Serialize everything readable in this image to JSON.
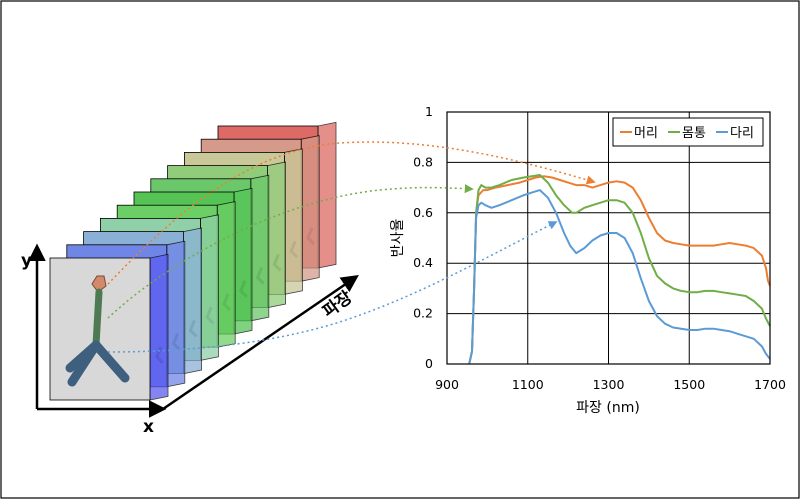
{
  "cube": {
    "x_label": "x",
    "y_label": "y",
    "wavelength_label": "파장",
    "slice_colors": [
      "#5b5cf0",
      "#6f86e6",
      "#8ab0d6",
      "#8fd0a8",
      "#6ccf66",
      "#55c455",
      "#6ac86a",
      "#90cc7a",
      "#c8c898",
      "#d59a8a",
      "#dd6a64"
    ]
  },
  "chart_data": {
    "type": "line",
    "xlabel": "파장 (nm)",
    "ylabel": "반사율",
    "xlim": [
      900,
      1700
    ],
    "ylim": [
      0,
      1
    ],
    "xticks": [
      "900",
      "1100",
      "1300",
      "1500",
      "1700"
    ],
    "yticks": [
      "0",
      "0.2",
      "0.4",
      "0.6",
      "0.8",
      "1"
    ],
    "grid": true,
    "legend_position": "top-right",
    "series": [
      {
        "name": "머리",
        "color": "#ed7d31",
        "x": [
          955,
          962,
          967,
          972,
          978,
          990,
          1000,
          1020,
          1050,
          1080,
          1100,
          1120,
          1140,
          1160,
          1180,
          1200,
          1220,
          1240,
          1260,
          1280,
          1300,
          1320,
          1340,
          1360,
          1380,
          1400,
          1420,
          1440,
          1460,
          1480,
          1500,
          1520,
          1540,
          1560,
          1580,
          1600,
          1620,
          1640,
          1660,
          1680,
          1690,
          1695,
          1700
        ],
        "y": [
          0.0,
          0.05,
          0.3,
          0.6,
          0.67,
          0.69,
          0.69,
          0.7,
          0.71,
          0.72,
          0.73,
          0.74,
          0.745,
          0.74,
          0.73,
          0.72,
          0.71,
          0.71,
          0.7,
          0.71,
          0.72,
          0.725,
          0.72,
          0.7,
          0.65,
          0.58,
          0.52,
          0.49,
          0.48,
          0.475,
          0.47,
          0.47,
          0.47,
          0.47,
          0.475,
          0.48,
          0.475,
          0.47,
          0.46,
          0.43,
          0.38,
          0.33,
          0.31
        ]
      },
      {
        "name": "몸통",
        "color": "#70ad47",
        "x": [
          955,
          962,
          967,
          972,
          978,
          985,
          995,
          1010,
          1030,
          1060,
          1090,
          1110,
          1130,
          1150,
          1170,
          1190,
          1210,
          1220,
          1240,
          1260,
          1280,
          1300,
          1320,
          1340,
          1360,
          1380,
          1400,
          1420,
          1440,
          1460,
          1480,
          1500,
          1520,
          1540,
          1560,
          1580,
          1600,
          1620,
          1640,
          1660,
          1680,
          1690,
          1700
        ],
        "y": [
          0.0,
          0.05,
          0.3,
          0.6,
          0.69,
          0.71,
          0.7,
          0.7,
          0.71,
          0.73,
          0.74,
          0.745,
          0.75,
          0.72,
          0.67,
          0.63,
          0.6,
          0.6,
          0.62,
          0.63,
          0.64,
          0.65,
          0.65,
          0.64,
          0.6,
          0.52,
          0.42,
          0.35,
          0.32,
          0.3,
          0.29,
          0.285,
          0.285,
          0.29,
          0.29,
          0.285,
          0.28,
          0.275,
          0.27,
          0.25,
          0.22,
          0.18,
          0.15
        ]
      },
      {
        "name": "다리",
        "color": "#5b9bd5",
        "x": [
          955,
          962,
          967,
          972,
          978,
          985,
          995,
          1010,
          1030,
          1060,
          1090,
          1110,
          1130,
          1150,
          1170,
          1190,
          1205,
          1220,
          1240,
          1260,
          1280,
          1300,
          1320,
          1340,
          1360,
          1380,
          1400,
          1420,
          1440,
          1460,
          1480,
          1500,
          1520,
          1540,
          1560,
          1580,
          1600,
          1620,
          1640,
          1660,
          1680,
          1690,
          1700
        ],
        "y": [
          0.0,
          0.05,
          0.3,
          0.58,
          0.63,
          0.64,
          0.63,
          0.62,
          0.63,
          0.65,
          0.67,
          0.68,
          0.69,
          0.66,
          0.6,
          0.52,
          0.47,
          0.44,
          0.46,
          0.49,
          0.51,
          0.52,
          0.52,
          0.5,
          0.44,
          0.34,
          0.25,
          0.19,
          0.16,
          0.145,
          0.14,
          0.135,
          0.135,
          0.14,
          0.14,
          0.135,
          0.13,
          0.12,
          0.11,
          0.1,
          0.07,
          0.04,
          0.02
        ]
      }
    ]
  }
}
